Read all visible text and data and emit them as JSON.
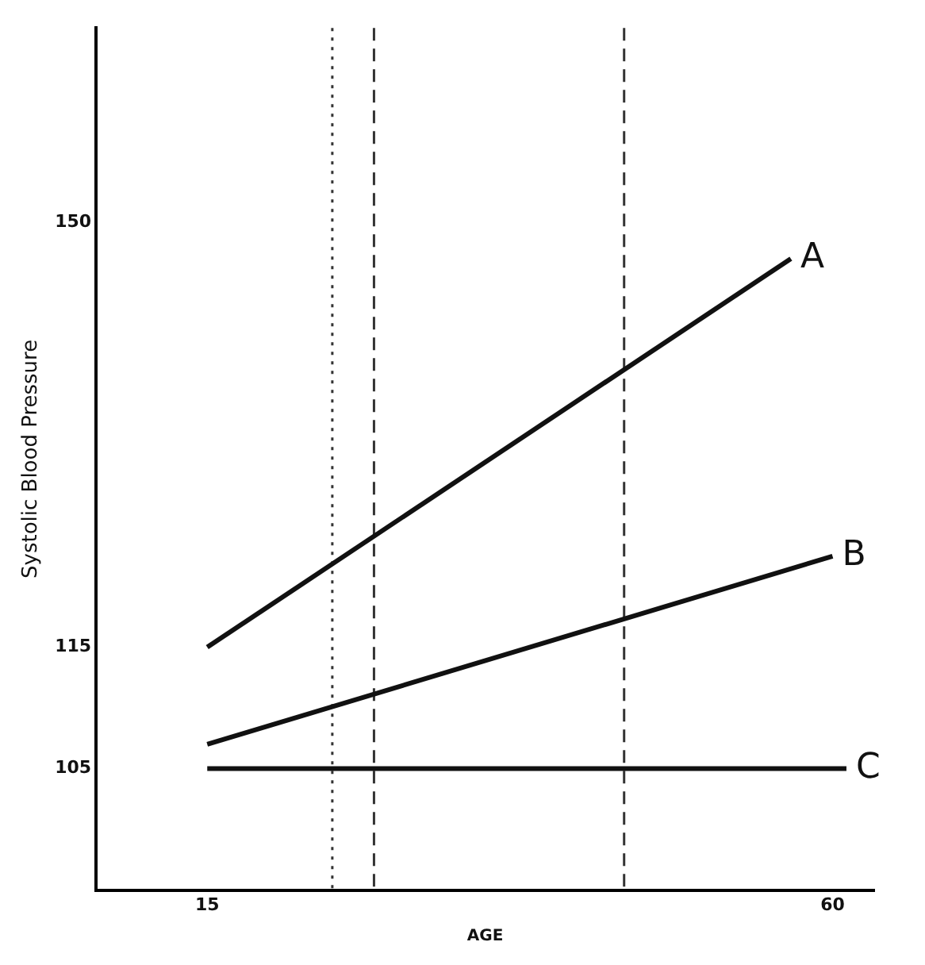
{
  "chart_data": {
    "type": "line",
    "xlabel": "AGE",
    "ylabel": "Systolic Blood Pressure",
    "xlim": [
      7,
      63
    ],
    "ylim": [
      95,
      166
    ],
    "xticks": [
      15,
      60
    ],
    "yticks": [
      105,
      115,
      150
    ],
    "series": [
      {
        "name": "A",
        "color": "#111111",
        "x": [
          15,
          57
        ],
        "values": [
          115,
          147
        ]
      },
      {
        "name": "B",
        "color": "#111111",
        "x": [
          15,
          60
        ],
        "values": [
          107,
          122.5
        ]
      },
      {
        "name": "C",
        "color": "#111111",
        "x": [
          15,
          61
        ],
        "values": [
          105,
          105
        ]
      }
    ],
    "ref_lines": [
      {
        "axis": "x",
        "value": 24,
        "color": "#333333",
        "line_style": "dotted"
      },
      {
        "axis": "x",
        "value": 27,
        "color": "#333333",
        "line_style": "dashed"
      },
      {
        "axis": "x",
        "value": 45,
        "color": "#333333",
        "line_style": "dashed"
      }
    ],
    "grid": false,
    "legend": false,
    "marker": "none",
    "line_style": "solid"
  }
}
